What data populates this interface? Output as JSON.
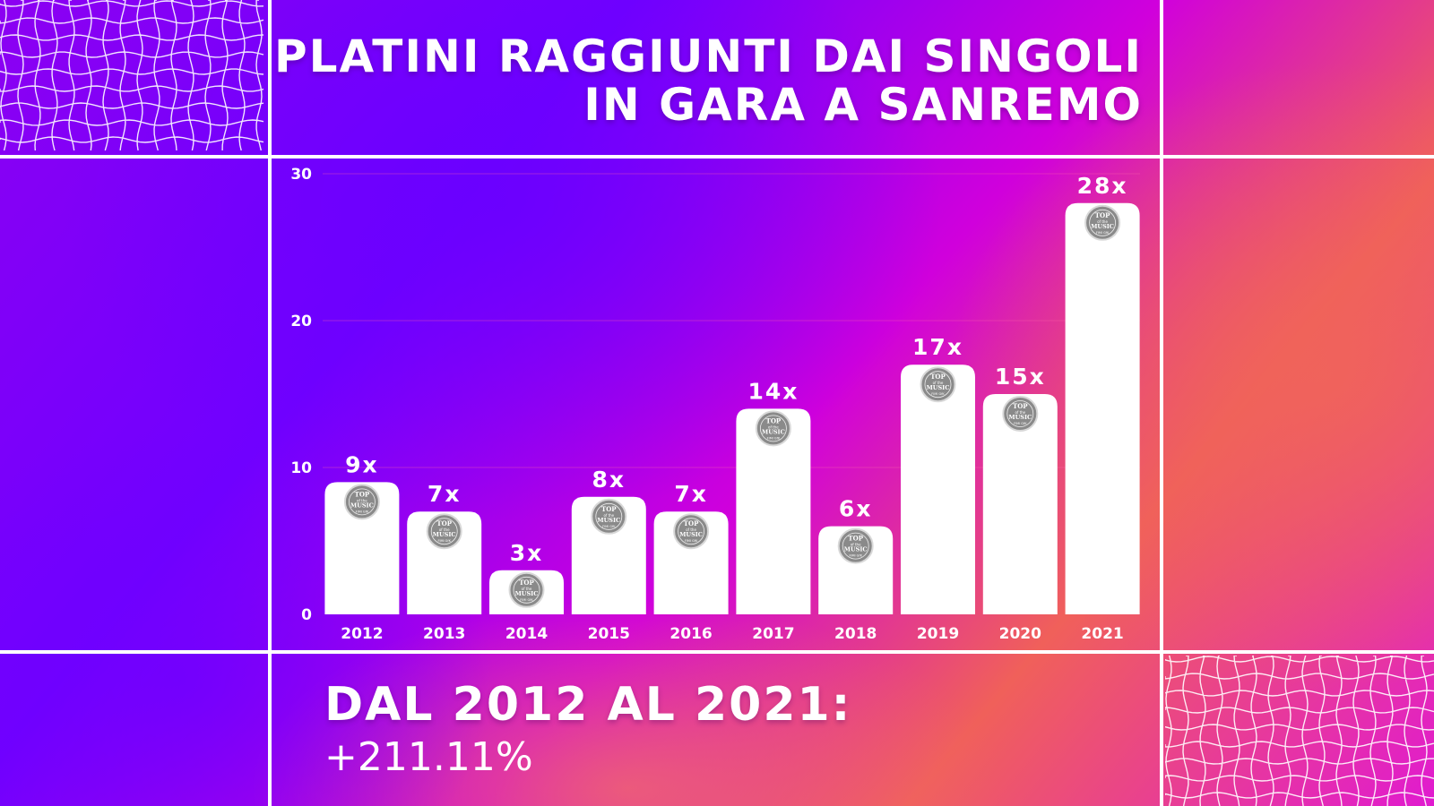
{
  "title": {
    "line1": "PLATINI RAGGIUNTI DAI SINGOLI",
    "line2": "IN GARA A SANREMO"
  },
  "footer": {
    "headline": "DAL 2012 AL 2021:",
    "value": "+211.11%"
  },
  "badge": {
    "top": "TOP",
    "of_the": "of the",
    "music": "MUSIC",
    "fimi": "FIMI GfK"
  },
  "colors": {
    "bar": "#ffffff",
    "badge_fill": "#8a8a8a",
    "gridline": "#ff66aa"
  },
  "chart_data": {
    "type": "bar",
    "categories": [
      "2012",
      "2013",
      "2014",
      "2015",
      "2016",
      "2017",
      "2018",
      "2019",
      "2020",
      "2021"
    ],
    "values": [
      9,
      7,
      3,
      8,
      7,
      14,
      6,
      17,
      15,
      28
    ],
    "data_labels": [
      "9x",
      "7x",
      "3x",
      "8x",
      "7x",
      "14x",
      "6x",
      "17x",
      "15x",
      "28x"
    ],
    "yticks": [
      "0",
      "10",
      "20",
      "30"
    ],
    "ylim": [
      0,
      30
    ],
    "title": "PLATINI RAGGIUNTI DAI SINGOLI IN GARA A SANREMO",
    "grid": true
  }
}
